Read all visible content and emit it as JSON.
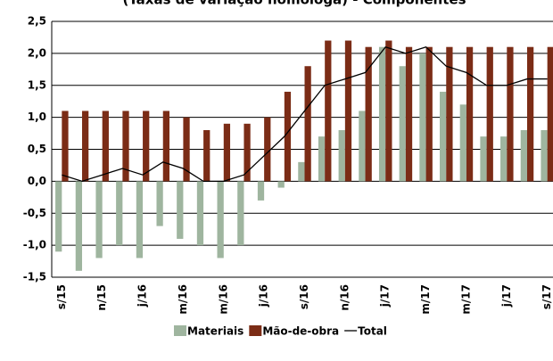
{
  "chart_data": {
    "type": "bar",
    "title": "(Taxas de variação homóloga) - Componentes",
    "categories": [
      "s/15",
      null,
      "n/15",
      null,
      "j/16",
      null,
      "m/16",
      null,
      "m/16",
      null,
      "j/16",
      null,
      "s/16",
      null,
      "n/16",
      null,
      "j/17",
      null,
      "m/17",
      null,
      "m/17",
      null,
      "j/17",
      null,
      "s/17"
    ],
    "series": [
      {
        "name": "Materiais",
        "color": "#9fb59f",
        "type": "bar",
        "values": [
          -1.1,
          -1.4,
          -1.2,
          -1.0,
          -1.2,
          -0.7,
          -0.9,
          -1.0,
          -1.2,
          -1.0,
          -0.3,
          -0.1,
          0.3,
          0.7,
          0.8,
          1.1,
          2.1,
          1.8,
          2.0,
          1.4,
          1.2,
          0.7,
          0.7,
          0.8,
          0.8
        ]
      },
      {
        "name": "Mão-de-obra",
        "color": "#7b2c16",
        "type": "bar",
        "values": [
          1.1,
          1.1,
          1.1,
          1.1,
          1.1,
          1.1,
          1.0,
          0.8,
          0.9,
          0.9,
          1.0,
          1.4,
          1.8,
          2.2,
          2.2,
          2.1,
          2.2,
          2.1,
          2.1,
          2.1,
          2.1,
          2.1,
          2.1,
          2.1,
          2.1
        ]
      },
      {
        "name": "Total",
        "color": "#000000",
        "type": "line",
        "values": [
          0.1,
          0.0,
          0.1,
          0.2,
          0.1,
          0.3,
          0.2,
          0.0,
          0.0,
          0.1,
          0.4,
          0.7,
          1.1,
          1.5,
          1.6,
          1.7,
          2.1,
          2.0,
          2.1,
          1.8,
          1.7,
          1.5,
          1.5,
          1.6,
          1.6
        ]
      }
    ],
    "ylim": [
      -1.5,
      2.5
    ],
    "yticks": [
      {
        "value": -1.5,
        "label": "-1,5"
      },
      {
        "value": -1.0,
        "label": "-1,0"
      },
      {
        "value": -0.5,
        "label": "-0,5"
      },
      {
        "value": 0,
        "label": "0,0"
      },
      {
        "value": 0.5,
        "label": "0,5"
      },
      {
        "value": 1.0,
        "label": "1,0"
      },
      {
        "value": 1.5,
        "label": "1,5"
      },
      {
        "value": 2.0,
        "label": "2,0"
      },
      {
        "value": 2.5,
        "label": "2,5"
      }
    ],
    "grid": true,
    "legend": "bottom"
  }
}
